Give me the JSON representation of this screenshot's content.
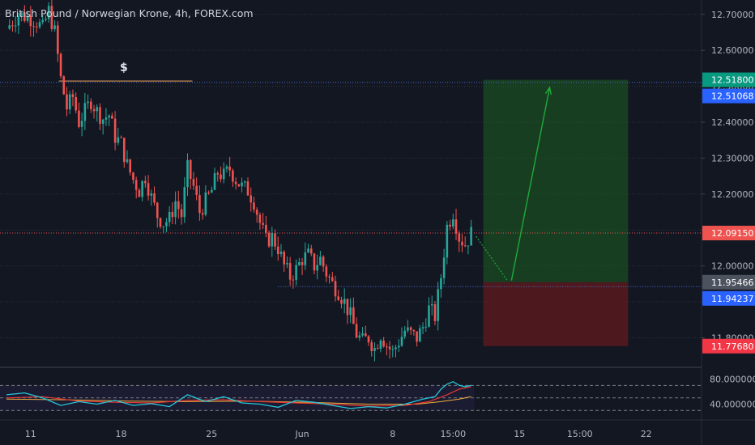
{
  "header": {
    "title": "British Pound / Norwegian Krone, 4h, FOREX.com"
  },
  "colors": {
    "background": "#131722",
    "up": "#26a69a",
    "down": "#ef5350",
    "grid": "#2a2e39",
    "target_zone": "#1b5e20",
    "stop_zone": "#5d1a1f",
    "arrow": "#1faa3b",
    "resistance": "#f0a45a",
    "price_line": "#ef5350"
  },
  "annotations": {
    "resistance_label": "$"
  },
  "price_labels": [
    {
      "value": "12.51800",
      "price": 12.518,
      "color": "#089981"
    },
    {
      "value": "12.51068",
      "price": 12.51068,
      "color": "#2962ff"
    },
    {
      "value": "12.09150",
      "price": 12.0915,
      "color": "#ef5350"
    },
    {
      "value": "11.95466",
      "price": 11.95466,
      "color": "#4c525e"
    },
    {
      "value": "11.94237",
      "price": 11.94237,
      "color": "#2962ff"
    },
    {
      "value": "11.77680",
      "price": 11.7768,
      "color": "#f23645"
    }
  ],
  "chart_data": {
    "type": "candlestick",
    "title": "British Pound / Norwegian Krone, 4h, FOREX.com",
    "ylim": [
      11.72,
      12.74
    ],
    "y_ticks": [
      "12.70000",
      "12.60000",
      "12.50000",
      "12.40000",
      "12.30000",
      "12.20000",
      "12.10000",
      "12.00000",
      "11.90000",
      "11.80000"
    ],
    "x_ticks": [
      {
        "label": "11",
        "index": 4
      },
      {
        "label": "18",
        "index": 19
      },
      {
        "label": "25",
        "index": 34
      },
      {
        "label": "Jun",
        "index": 49
      },
      {
        "label": "8",
        "index": 64
      },
      {
        "label": "15:00",
        "index": 74
      },
      {
        "label": "15",
        "index": 85
      },
      {
        "label": "15:00",
        "index": 95
      },
      {
        "label": "22",
        "index": 106
      }
    ],
    "close_path": [
      [
        0,
        12.66
      ],
      [
        2,
        12.7
      ],
      [
        4,
        12.69
      ],
      [
        5,
        12.68
      ],
      [
        6,
        12.66
      ],
      [
        7,
        12.71
      ],
      [
        8,
        12.65
      ],
      [
        9,
        12.52
      ],
      [
        10,
        12.44
      ],
      [
        11,
        12.47
      ],
      [
        12,
        12.4
      ],
      [
        13,
        12.43
      ],
      [
        14,
        12.46
      ],
      [
        15,
        12.43
      ],
      [
        16,
        12.41
      ],
      [
        17,
        12.42
      ],
      [
        18,
        12.36
      ],
      [
        19,
        12.34
      ],
      [
        20,
        12.28
      ],
      [
        21,
        12.24
      ],
      [
        22,
        12.21
      ],
      [
        23,
        12.25
      ],
      [
        24,
        12.19
      ],
      [
        25,
        12.14
      ],
      [
        26,
        12.12
      ],
      [
        27,
        12.13
      ],
      [
        28,
        12.18
      ],
      [
        29,
        12.14
      ],
      [
        30,
        12.27
      ],
      [
        31,
        12.22
      ],
      [
        32,
        12.15
      ],
      [
        33,
        12.18
      ],
      [
        34,
        12.21
      ],
      [
        35,
        12.26
      ],
      [
        36,
        12.25
      ],
      [
        37,
        12.27
      ],
      [
        38,
        12.24
      ],
      [
        39,
        12.22
      ],
      [
        40,
        12.21
      ],
      [
        41,
        12.18
      ],
      [
        42,
        12.12
      ],
      [
        43,
        12.07
      ],
      [
        44,
        12.08
      ],
      [
        45,
        12.05
      ],
      [
        46,
        12.0
      ],
      [
        47,
        11.97
      ],
      [
        48,
        11.99
      ],
      [
        49,
        12.02
      ],
      [
        50,
        12.03
      ],
      [
        51,
        12.0
      ],
      [
        52,
        12.02
      ],
      [
        53,
        11.98
      ],
      [
        54,
        11.95
      ],
      [
        55,
        11.93
      ],
      [
        56,
        11.9
      ],
      [
        57,
        11.86
      ],
      [
        58,
        11.81
      ],
      [
        59,
        11.79
      ],
      [
        60,
        11.8
      ],
      [
        61,
        11.77
      ],
      [
        62,
        11.81
      ],
      [
        63,
        11.78
      ],
      [
        64,
        11.76
      ],
      [
        65,
        11.79
      ],
      [
        66,
        11.82
      ],
      [
        67,
        11.81
      ],
      [
        68,
        11.8
      ],
      [
        69,
        11.83
      ],
      [
        70,
        11.88
      ],
      [
        71,
        11.86
      ],
      [
        72,
        11.97
      ],
      [
        73,
        12.11
      ],
      [
        74,
        12.15
      ],
      [
        75,
        12.08
      ],
      [
        76,
        12.06
      ],
      [
        77,
        12.09
      ]
    ],
    "trade_setup": {
      "entry": 11.95466,
      "target": 12.518,
      "stop": 11.7768,
      "zone_start_index": 79,
      "zone_end_index": 103,
      "projection": [
        [
          77,
          12.0915
        ],
        [
          83,
          11.95466
        ],
        [
          90,
          12.51
        ]
      ]
    },
    "resistance_line": {
      "price": 12.51,
      "start_index": 6,
      "end_index": 30
    },
    "support_line": {
      "price": 11.94237,
      "start_index": 45,
      "end_index": 77
    },
    "rsi": {
      "ylim": [
        20,
        95
      ],
      "y_ticks": [
        "80.000000",
        "40.000000"
      ],
      "levels": [
        70,
        50,
        30
      ],
      "rsi_path": [
        [
          0,
          55
        ],
        [
          3,
          58
        ],
        [
          6,
          50
        ],
        [
          9,
          38
        ],
        [
          12,
          44
        ],
        [
          15,
          40
        ],
        [
          18,
          46
        ],
        [
          21,
          38
        ],
        [
          24,
          41
        ],
        [
          27,
          36
        ],
        [
          30,
          55
        ],
        [
          33,
          44
        ],
        [
          36,
          52
        ],
        [
          39,
          42
        ],
        [
          42,
          40
        ],
        [
          45,
          35
        ],
        [
          48,
          46
        ],
        [
          51,
          43
        ],
        [
          54,
          38
        ],
        [
          57,
          33
        ],
        [
          60,
          36
        ],
        [
          63,
          34
        ],
        [
          66,
          40
        ],
        [
          69,
          48
        ],
        [
          71,
          52
        ],
        [
          72,
          64
        ],
        [
          73,
          72
        ],
        [
          74,
          76
        ],
        [
          75,
          70
        ],
        [
          76,
          68
        ],
        [
          77,
          70
        ]
      ],
      "signal_path": [
        [
          0,
          50
        ],
        [
          6,
          52
        ],
        [
          12,
          45
        ],
        [
          18,
          43
        ],
        [
          24,
          42
        ],
        [
          30,
          46
        ],
        [
          36,
          47
        ],
        [
          42,
          44
        ],
        [
          48,
          42
        ],
        [
          54,
          40
        ],
        [
          60,
          37
        ],
        [
          66,
          38
        ],
        [
          70,
          44
        ],
        [
          73,
          55
        ],
        [
          75,
          64
        ],
        [
          77,
          68
        ]
      ],
      "baseline_path": [
        [
          0,
          48
        ],
        [
          10,
          47
        ],
        [
          20,
          45
        ],
        [
          30,
          44
        ],
        [
          40,
          45
        ],
        [
          50,
          43
        ],
        [
          60,
          40
        ],
        [
          68,
          40
        ],
        [
          72,
          44
        ],
        [
          75,
          48
        ],
        [
          77,
          52
        ]
      ]
    }
  }
}
